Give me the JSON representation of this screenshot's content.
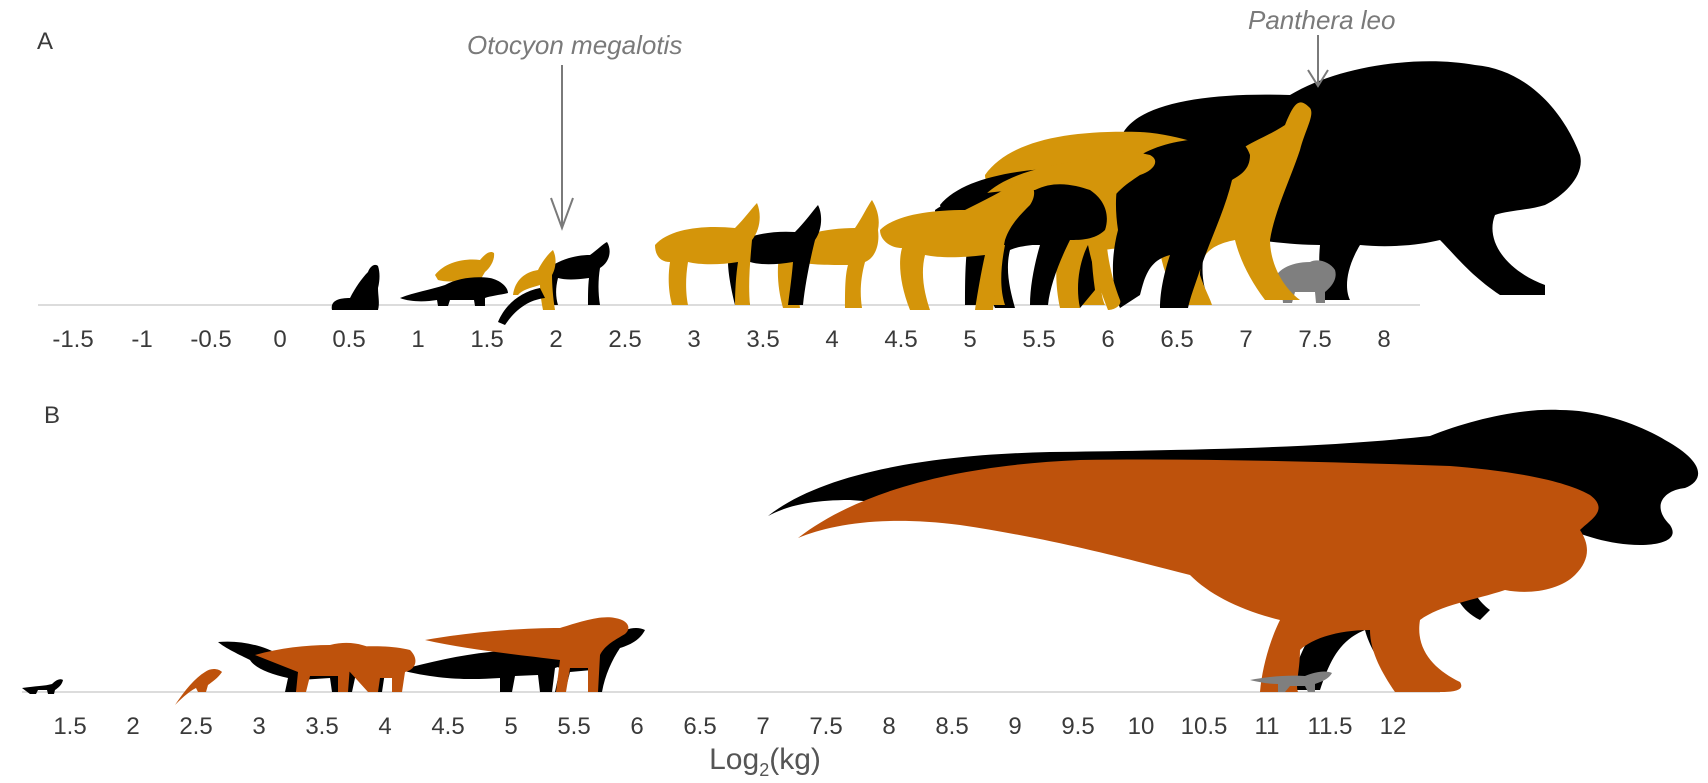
{
  "panels": [
    {
      "label": "A",
      "ticks": [
        "-1.5",
        "-1",
        "-0.5",
        "0",
        "0.5",
        "1",
        "1.5",
        "2",
        "2.5",
        "3",
        "3.5",
        "4",
        "4.5",
        "5",
        "5.5",
        "6",
        "6.5",
        "7",
        "7.5",
        "8"
      ],
      "annotations": [
        {
          "text": "Otocyon megalotis",
          "points_to": "2"
        },
        {
          "text": "Panthera leo",
          "points_to": "7.5"
        }
      ]
    },
    {
      "label": "B",
      "ticks": [
        "1.5",
        "2",
        "2.5",
        "3",
        "3.5",
        "4",
        "4.5",
        "5",
        "5.5",
        "6",
        "6.5",
        "7",
        "7.5",
        "8",
        "8.5",
        "9",
        "9.5",
        "10",
        "10.5",
        "11",
        "11.5",
        "12"
      ]
    }
  ],
  "axis_title": {
    "base": "Log",
    "sub": "2",
    "rest": "(kg)"
  },
  "colors": {
    "mammal_black": "#000000",
    "mammal_gold": "#D4950A",
    "dino_black": "#000000",
    "dino_orange": "#BE520C",
    "grey_silhouette": "#7f7f7f",
    "axis_line": "#d0d0d0",
    "annotation_grey": "#7a7a7a"
  },
  "silhouettes": {
    "panel_a": [
      "cat-silhouette",
      "marten-silhouette",
      "fox-silhouette",
      "bat-eared-fox-silhouette",
      "dark-fox-silhouette",
      "jackal-silhouette",
      "coyote-silhouette",
      "caracal-silhouette",
      "wolf-silhouette",
      "hyena-silhouette",
      "striped-hyena-silhouette",
      "bear-silhouette",
      "cheetah-silhouette",
      "lion-silhouette",
      "cub-silhouette"
    ],
    "panel_b": [
      "small-dino-silhouette",
      "juvenile-dino-silhouette",
      "raptor-silhouettes",
      "tyrannosaur-black-silhouette",
      "tyrannosaur-orange-silhouette",
      "hatchling-tyrannosaur-silhouette"
    ]
  }
}
